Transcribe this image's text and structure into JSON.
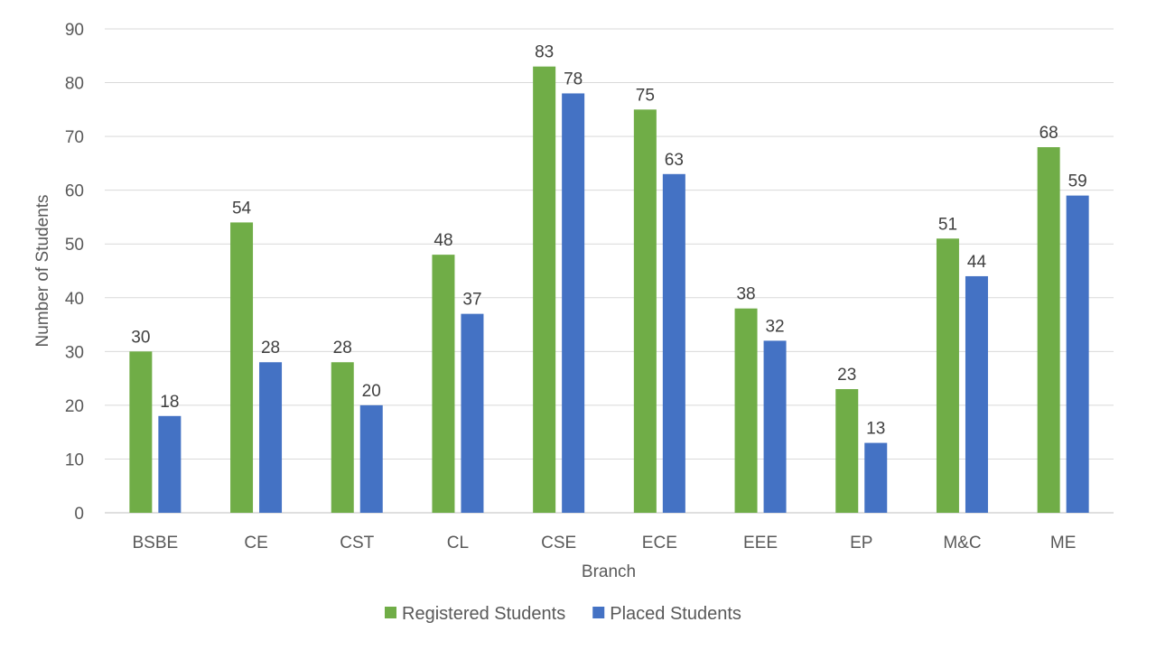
{
  "chart_data": {
    "type": "bar",
    "title": "",
    "xlabel": "Branch",
    "ylabel": "Number of Students",
    "ylim": [
      0,
      90
    ],
    "ytick_step": 10,
    "grid": true,
    "legend_position": "bottom",
    "categories": [
      "BSBE",
      "CE",
      "CST",
      "CL",
      "CSE",
      "ECE",
      "EEE",
      "EP",
      "M&C",
      "ME"
    ],
    "series": [
      {
        "name": "Registered Students",
        "color": "#70ad47",
        "values": [
          30,
          54,
          28,
          48,
          83,
          75,
          38,
          23,
          51,
          68
        ]
      },
      {
        "name": "Placed Students",
        "color": "#4472c4",
        "values": [
          18,
          28,
          20,
          37,
          78,
          63,
          32,
          13,
          44,
          59
        ]
      }
    ]
  }
}
